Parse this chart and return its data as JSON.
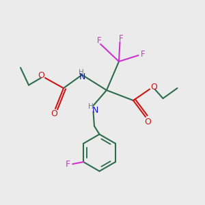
{
  "bg_color": "#ebebeb",
  "bond_color": "#2d6b50",
  "N_color": "#1515cc",
  "O_color": "#cc1515",
  "F_color": "#cc33cc",
  "line_width": 1.5,
  "fig_size": [
    3.0,
    3.0
  ],
  "dpi": 100,
  "xlim": [
    0,
    10
  ],
  "ylim": [
    0,
    10
  ]
}
